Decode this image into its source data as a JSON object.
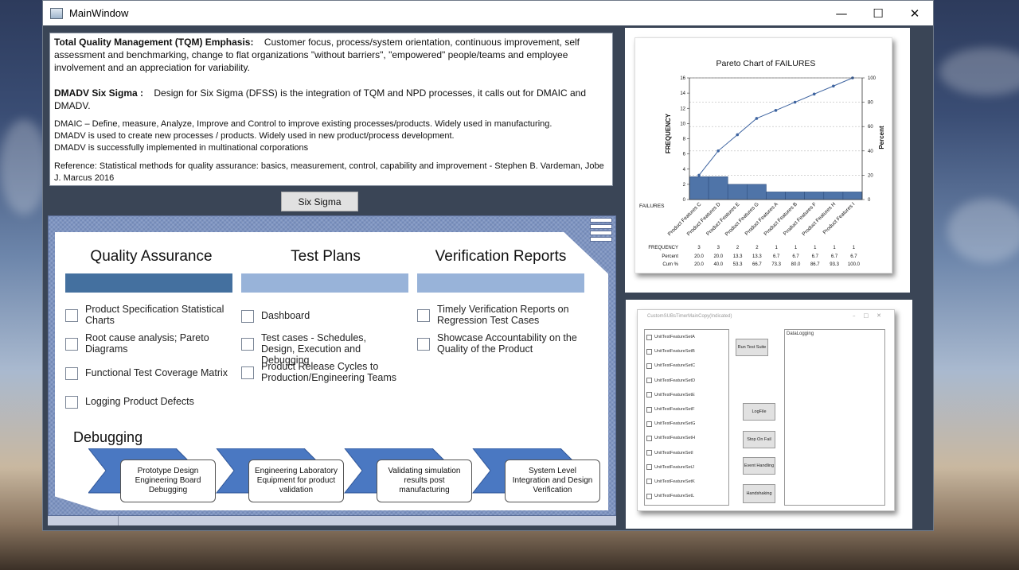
{
  "window": {
    "title": "MainWindow",
    "controls": {
      "minimize": "—",
      "maximize": "☐",
      "close": "✕"
    }
  },
  "tqm": {
    "heading1": "Total Quality Management (TQM) Emphasis:",
    "body1": "Customer focus, process/system orientation, continuous improvement, self assessment and benchmarking, change to flat organizations \"without barriers\", \"empowered\" people/teams and employee involvement and an appreciation for variability.",
    "heading2": "DMADV Six Sigma :",
    "body2": "Design for Six Sigma (DFSS) is the integration of TQM and NPD processes, it calls out for DMAIC and DMADV.",
    "line1": "DMAIC – Define, measure, Analyze, Improve and Control  to improve existing processes/products. Widely used in manufacturing.",
    "line2": "DMADV is used to create new processes / products. Widely used in new product/process development.",
    "line3": "DMADV is successfully implemented in multinational corporations",
    "reference": "Reference: Statistical methods for quality assurance: basics, measurement, control, capability and improvement - Stephen B. Vardeman, Jobe J. Marcus 2016"
  },
  "six_sigma_button": "Six Sigma",
  "smartart": {
    "columns": [
      {
        "title": "Quality Assurance",
        "bar_color": "#44709f",
        "items": [
          "Product Specification Statistical Charts",
          "Root cause analysis; Pareto Diagrams",
          "Functional Test Coverage Matrix",
          "Logging Product Defects"
        ]
      },
      {
        "title": "Test Plans",
        "bar_color": "#98b3d9",
        "items": [
          "Dashboard",
          "Test cases - Schedules, Design, Execution and Debugging",
          "Product Release Cycles to Production/Engineering Teams"
        ]
      },
      {
        "title": "Verification Reports",
        "bar_color": "#98b3d9",
        "items": [
          "Timely Verification Reports on Regression Test Cases",
          "Showcase Accountability on the Quality of the Product"
        ]
      }
    ],
    "debugging": {
      "title": "Debugging",
      "steps": [
        "Prototype Design Engineering Board Debugging",
        "Engineering Laboratory Equipment for product validation",
        "Validating simulation results post manufacturing",
        "System Level Integration and Design Verification"
      ]
    }
  },
  "chart_data": {
    "type": "bar",
    "title": "Pareto Chart of FAILURES",
    "xlabel": "FAILURES",
    "ylabel": "FREQUENCY",
    "y2label": "Percent",
    "categories": [
      "Product Features C",
      "Product Features D",
      "Product Features E",
      "Product Features G",
      "Product Features A",
      "Product Features B",
      "Product Features F",
      "Product Features H",
      "Product Features I"
    ],
    "series": [
      {
        "name": "FREQUENCY",
        "values": [
          3,
          3,
          2,
          2,
          1,
          1,
          1,
          1,
          1
        ]
      },
      {
        "name": "Cum %",
        "values": [
          20.0,
          40.0,
          53.3,
          66.7,
          73.3,
          80.0,
          86.7,
          93.3,
          100.0
        ]
      }
    ],
    "percent": [
      20.0,
      20.0,
      13.3,
      13.3,
      6.7,
      6.7,
      6.7,
      6.7,
      6.7
    ],
    "ylim": [
      0,
      16
    ],
    "yticks": [
      0,
      2,
      4,
      6,
      8,
      10,
      12,
      14,
      16
    ],
    "y2lim": [
      0,
      100
    ],
    "y2ticks": [
      0,
      20,
      40,
      60,
      80,
      100
    ],
    "table_labels": [
      "FREQUENCY",
      "Percent",
      "Cum %"
    ],
    "bar_color": "#4f74a8",
    "line_color": "#3e64a0"
  },
  "runner": {
    "title": "CustomSUBsTimerMainCopy(Indicated)",
    "tests": [
      "UnitTestFeatureSetA",
      "UnitTestFeatureSetB",
      "UnitTestFeatureSetC",
      "UnitTestFeatureSetD",
      "UnitTestFeatureSetE",
      "UnitTestFeatureSetF",
      "UnitTestFeatureSetG",
      "UnitTestFeatureSetH",
      "UnitTestFeatureSetI",
      "UnitTestFeatureSetJ",
      "UnitTestFeatureSetK",
      "UnitTestFeatureSetL"
    ],
    "run_button": "Run Test Suite",
    "logfile_button": "LogFile",
    "stop_button": "Stop On Fail",
    "event_button": "Event Handling",
    "handshake_button": "Handshaking",
    "log_label": "DataLogging"
  }
}
